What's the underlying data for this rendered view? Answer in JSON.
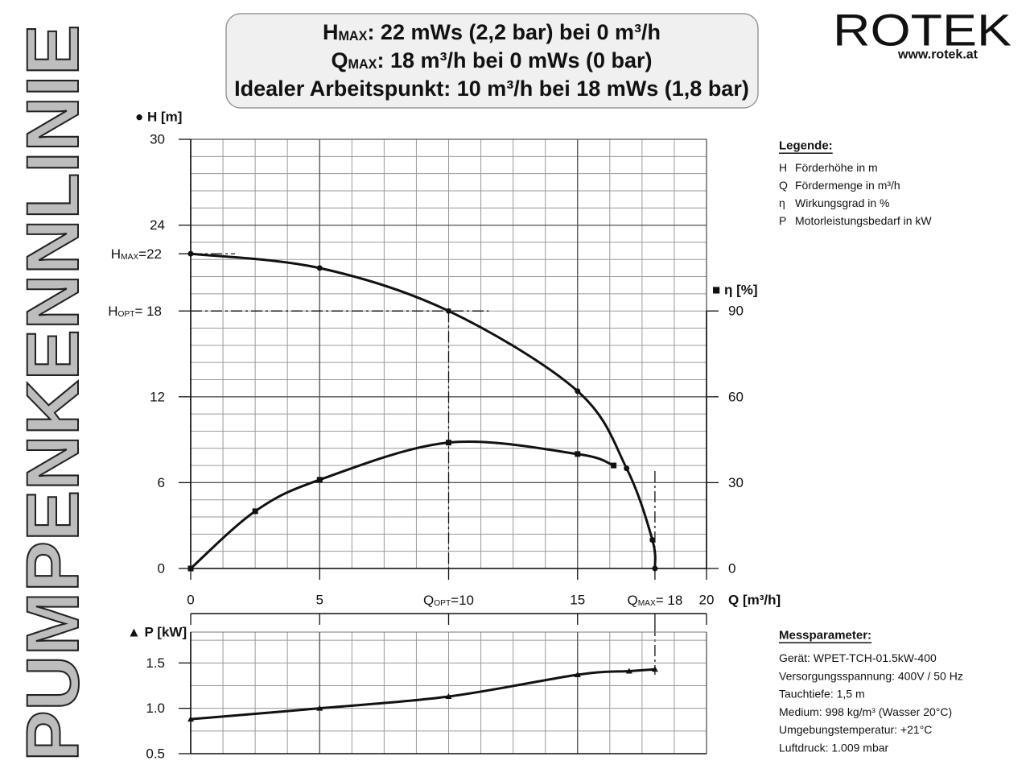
{
  "side_title": "PUMPENKENNLINIE",
  "header": {
    "lines": [
      {
        "symbol": "H",
        "sub": "MAX",
        "text": ": 22 mWs (2,2 bar) bei 0 m³/h"
      },
      {
        "symbol": "Q",
        "sub": "MAX",
        "text": ": 18 m³/h bei 0 mWs (0 bar)"
      },
      {
        "text": "Idealer Arbeitspunkt: 10 m³/h bei 18 mWs (1,8 bar)"
      }
    ]
  },
  "logo": {
    "name": "ROTEK",
    "url": "www.rotek.at"
  },
  "legend": {
    "title": "Legende:",
    "items": [
      {
        "symbol": "H",
        "text": "Förderhöhe in m"
      },
      {
        "symbol": "Q",
        "text": "Fördermenge in m³/h"
      },
      {
        "symbol": "η",
        "text": "Wirkungsgrad in %"
      },
      {
        "symbol": "P",
        "text": "Motorleistungsbedarf in kW"
      }
    ]
  },
  "parameters": {
    "title": "Messparameter:",
    "lines": [
      "Gerät: WPET-TCH-01.5kW-400",
      "Versorgungsspannung: 400V / 50 Hz",
      "Tauchtiefe: 1,5 m",
      "Medium: 998 kg/m³ (Wasser 20°C)",
      "Umgebungstemperatur: +21°C",
      "Luftdruck: 1.009 mbar"
    ]
  },
  "chart_data": [
    {
      "type": "line",
      "y_label": "● H [m]",
      "y2_label": "■ η [%]",
      "x_label": "Q [m³/h]",
      "xlim": [
        0,
        20
      ],
      "xticks": [
        0,
        5,
        {
          "value": 10,
          "label": "QOPT=10"
        },
        15,
        {
          "value": 18,
          "label": "QMAX= 18"
        },
        20
      ],
      "ylim": [
        0,
        30
      ],
      "yticks": [
        0,
        6,
        12,
        {
          "value": 18,
          "label": "HOPT= 18"
        },
        {
          "value": 22,
          "label": "HMAX=22"
        },
        24,
        30
      ],
      "y2lim": [
        0,
        150
      ],
      "y2ticks": [
        0,
        30,
        60,
        90
      ],
      "grid": true,
      "series": [
        {
          "marker": "circle",
          "color": "#111111",
          "x": [
            0,
            5,
            10,
            15,
            16.9,
            17.9,
            18
          ],
          "values": [
            22,
            21,
            18,
            12.4,
            7,
            2,
            0
          ]
        },
        {
          "marker": "square",
          "color": "#111111",
          "axis": "y2",
          "x": [
            0,
            2.5,
            5,
            10,
            15,
            16.4
          ],
          "values": [
            0,
            20,
            31,
            44,
            40,
            36
          ]
        }
      ]
    },
    {
      "type": "line",
      "y_label": "▲ P [kW]",
      "xlim": [
        0,
        20
      ],
      "ylim": [
        0.5,
        1.84
      ],
      "yticks": [
        {
          "value": 0.5,
          "label": "0.5"
        },
        {
          "value": 1,
          "label": "1.0"
        },
        1.5
      ],
      "grid": true,
      "series": [
        {
          "marker": "triangle",
          "color": "#111111",
          "x": [
            0,
            5,
            10,
            15,
            17,
            18
          ],
          "values": [
            0.88,
            1,
            1.13,
            1.37,
            1.41,
            1.43
          ]
        }
      ]
    }
  ]
}
